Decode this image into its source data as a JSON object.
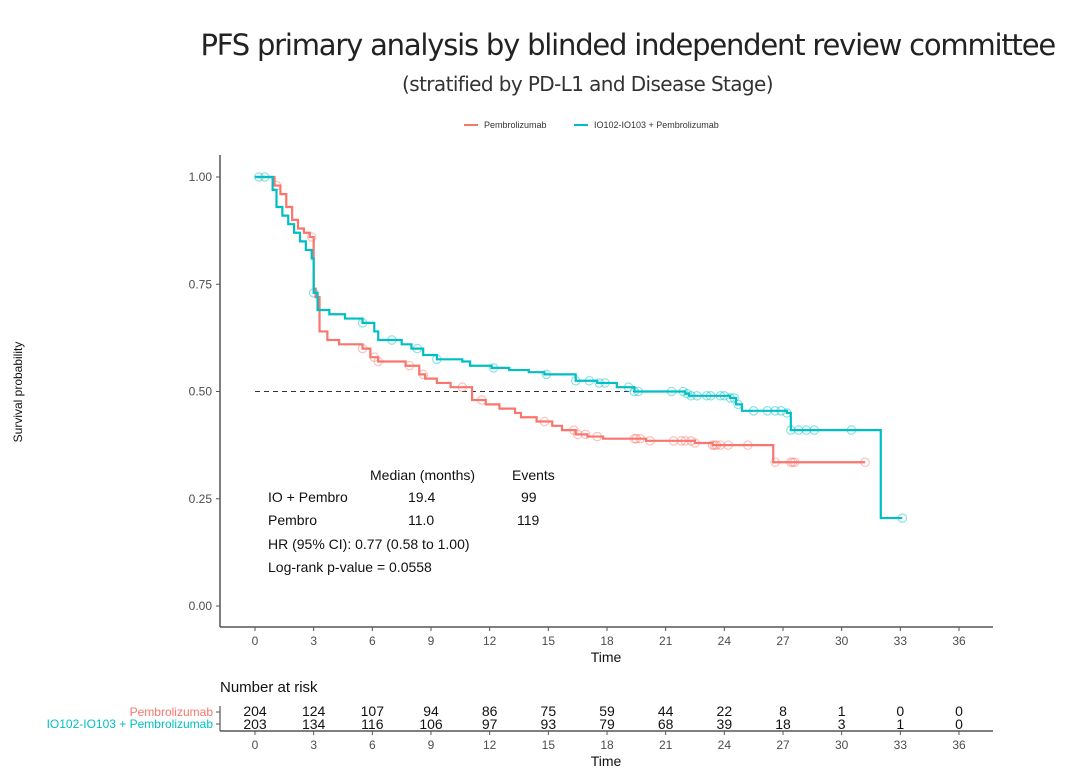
{
  "chart_data": {
    "type": "line",
    "subtype": "kaplan-meier",
    "title": "PFS primary analysis by blinded independent review committee",
    "subtitle": "(stratified by PD-L1 and Disease Stage)",
    "xlabel": "Time",
    "ylabel": "Survival probability",
    "xlim": [
      -1.5,
      37.5
    ],
    "ylim": [
      0,
      1.0
    ],
    "x_ticks": [
      0,
      3,
      6,
      9,
      12,
      15,
      18,
      21,
      24,
      27,
      30,
      33,
      36
    ],
    "y_ticks": [
      0.0,
      0.25,
      0.5,
      0.75,
      1.0
    ],
    "y_tick_labels": [
      "0.00",
      "0.25",
      "0.50",
      "0.75",
      "1.00"
    ],
    "grid": false,
    "legend": {
      "position": "top-center",
      "entries": [
        "Pembrolizumab",
        "IO102-IO103 + Pembrolizumab"
      ]
    },
    "reference_line": {
      "y": 0.5,
      "x_end": 19.4,
      "style": "dashed"
    },
    "series": [
      {
        "name": "Pembrolizumab",
        "color": "#F8766D",
        "steps": [
          [
            0,
            1.0
          ],
          [
            0.6,
            1.0
          ],
          [
            1.0,
            0.98
          ],
          [
            1.3,
            0.96
          ],
          [
            1.6,
            0.93
          ],
          [
            1.9,
            0.9
          ],
          [
            2.2,
            0.88
          ],
          [
            2.5,
            0.87
          ],
          [
            2.8,
            0.86
          ],
          [
            3.0,
            0.74
          ],
          [
            3.1,
            0.72
          ],
          [
            3.3,
            0.64
          ],
          [
            3.7,
            0.62
          ],
          [
            4.3,
            0.61
          ],
          [
            5.5,
            0.6
          ],
          [
            5.9,
            0.58
          ],
          [
            6.3,
            0.57
          ],
          [
            7.7,
            0.56
          ],
          [
            8.4,
            0.54
          ],
          [
            8.7,
            0.53
          ],
          [
            9.3,
            0.52
          ],
          [
            10.0,
            0.51
          ],
          [
            11.0,
            0.51
          ],
          [
            11.1,
            0.48
          ],
          [
            11.8,
            0.47
          ],
          [
            12.5,
            0.46
          ],
          [
            13.3,
            0.45
          ],
          [
            13.6,
            0.44
          ],
          [
            14.4,
            0.43
          ],
          [
            15.2,
            0.42
          ],
          [
            15.7,
            0.41
          ],
          [
            16.4,
            0.4
          ],
          [
            17.0,
            0.395
          ],
          [
            17.8,
            0.39
          ],
          [
            19.5,
            0.39
          ],
          [
            20.0,
            0.385
          ],
          [
            22.5,
            0.38
          ],
          [
            23.4,
            0.375
          ],
          [
            26.4,
            0.375
          ],
          [
            26.5,
            0.335
          ],
          [
            31.2,
            0.335
          ]
        ],
        "censor_times": [
          1.1,
          2.9,
          5.5,
          6.1,
          6.3,
          7.9,
          8.6,
          10.6,
          11.6,
          14.8,
          16.3,
          16.5,
          16.9,
          17.5,
          19.4,
          19.5,
          19.7,
          20.2,
          21.4,
          21.8,
          22.0,
          22.3,
          22.5,
          23.4,
          23.5,
          23.6,
          23.8,
          24.2,
          25.2,
          26.6,
          27.4,
          27.5,
          27.6,
          31.2
        ],
        "number_at_risk": [
          204,
          124,
          107,
          94,
          86,
          75,
          59,
          44,
          22,
          8,
          1,
          0,
          0
        ],
        "median_months": "11.0",
        "events": "119"
      },
      {
        "name": "IO102-IO103 + Pembrolizumab",
        "color": "#00BFC4",
        "steps": [
          [
            0,
            1.0
          ],
          [
            0.6,
            1.0
          ],
          [
            0.9,
            0.97
          ],
          [
            1.1,
            0.93
          ],
          [
            1.4,
            0.91
          ],
          [
            1.7,
            0.89
          ],
          [
            2.0,
            0.87
          ],
          [
            2.3,
            0.85
          ],
          [
            2.6,
            0.83
          ],
          [
            2.9,
            0.81
          ],
          [
            3.0,
            0.73
          ],
          [
            3.2,
            0.69
          ],
          [
            3.8,
            0.68
          ],
          [
            4.6,
            0.67
          ],
          [
            5.5,
            0.66
          ],
          [
            6.1,
            0.64
          ],
          [
            6.3,
            0.62
          ],
          [
            7.5,
            0.61
          ],
          [
            8.0,
            0.6
          ],
          [
            8.6,
            0.585
          ],
          [
            9.3,
            0.575
          ],
          [
            10.6,
            0.57
          ],
          [
            11.0,
            0.56
          ],
          [
            12.1,
            0.555
          ],
          [
            13.0,
            0.55
          ],
          [
            14.0,
            0.545
          ],
          [
            14.8,
            0.54
          ],
          [
            16.4,
            0.525
          ],
          [
            17.5,
            0.52
          ],
          [
            18.5,
            0.51
          ],
          [
            19.4,
            0.5
          ],
          [
            22.0,
            0.495
          ],
          [
            22.2,
            0.49
          ],
          [
            24.3,
            0.485
          ],
          [
            24.6,
            0.47
          ],
          [
            24.9,
            0.455
          ],
          [
            27.2,
            0.45
          ],
          [
            27.4,
            0.41
          ],
          [
            31.9,
            0.41
          ],
          [
            32.0,
            0.205
          ],
          [
            33.1,
            0.205
          ]
        ],
        "censor_times": [
          0.2,
          0.5,
          3.0,
          5.5,
          7.0,
          8.3,
          9.3,
          12.2,
          14.9,
          16.4,
          17.1,
          17.6,
          17.9,
          19.1,
          19.4,
          19.6,
          21.3,
          21.9,
          22.1,
          22.3,
          22.6,
          23.1,
          23.3,
          23.8,
          24.0,
          24.3,
          24.5,
          24.7,
          25.5,
          26.2,
          26.6,
          26.9,
          27.2,
          27.4,
          27.8,
          28.2,
          28.6,
          30.5,
          33.1
        ],
        "number_at_risk": [
          203,
          134,
          116,
          106,
          97,
          93,
          79,
          68,
          39,
          18,
          3,
          1,
          0
        ],
        "median_months": "19.4",
        "events": "99"
      }
    ],
    "annotation": {
      "header_median": "Median (months)",
      "header_events": "Events",
      "rows": [
        {
          "label": "IO + Pembro",
          "median": "19.4",
          "events": "99"
        },
        {
          "label": "Pembro",
          "median": "11.0",
          "events": "119"
        }
      ],
      "hr_text": "HR (95% CI): 0.77 (0.58 to 1.00)",
      "pvalue_text": "Log-rank p-value = 0.0558"
    },
    "risk_table": {
      "title": "Number at risk",
      "xlabel": "Time",
      "times": [
        0,
        3,
        6,
        9,
        12,
        15,
        18,
        21,
        24,
        27,
        30,
        33,
        36
      ],
      "rows": [
        {
          "label": "Pembrolizumab",
          "color": "#F8766D",
          "values": [
            204,
            124,
            107,
            94,
            86,
            75,
            59,
            44,
            22,
            8,
            1,
            0,
            0
          ]
        },
        {
          "label": "IO102-IO103 + Pembrolizumab",
          "color": "#00BFC4",
          "values": [
            203,
            134,
            116,
            106,
            97,
            93,
            79,
            68,
            39,
            18,
            3,
            1,
            0
          ]
        }
      ]
    }
  }
}
